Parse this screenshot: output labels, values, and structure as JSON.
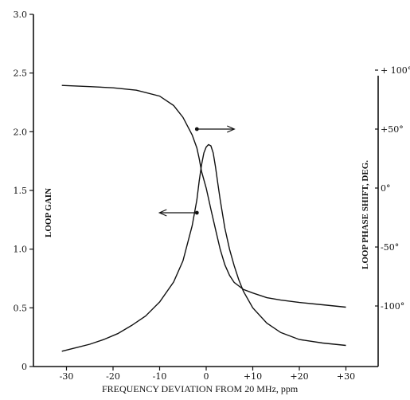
{
  "chart_data": {
    "type": "line",
    "title": "",
    "xlabel": "FREQUENCY DEVIATION FROM 20 MHz, ppm",
    "ylabel": "LOOP GAIN",
    "y2label": "LOOP PHASE SHIFT, DEG.",
    "xlim": [
      -32,
      33
    ],
    "ylim": [
      0,
      3.0
    ],
    "y2lim": [
      -150,
      150
    ],
    "grid": false,
    "x_ticks": [
      {
        "value": -30,
        "label": "-30"
      },
      {
        "value": -20,
        "label": "-20"
      },
      {
        "value": -10,
        "label": "-10"
      },
      {
        "value": 0,
        "label": "0"
      },
      {
        "value": 10,
        "label": "+10"
      },
      {
        "value": 20,
        "label": "+20"
      },
      {
        "value": 30,
        "label": "+30"
      }
    ],
    "y_ticks": [
      {
        "value": 0,
        "label": "0"
      },
      {
        "value": 0.5,
        "label": "0.5"
      },
      {
        "value": 1.0,
        "label": "1.0"
      },
      {
        "value": 1.5,
        "label": "1.5"
      },
      {
        "value": 2.0,
        "label": "2.0"
      },
      {
        "value": 2.5,
        "label": "2.5"
      },
      {
        "value": 3.0,
        "label": "3.0"
      }
    ],
    "y2_ticks": [
      {
        "value": 100,
        "label": "+ 100°"
      },
      {
        "value": 50,
        "label": "+50°"
      },
      {
        "value": 0,
        "label": "0°"
      },
      {
        "value": -50,
        "label": "-50°"
      },
      {
        "value": -100,
        "label": "-100°"
      }
    ],
    "series": [
      {
        "axis": "left",
        "x": [
          -31,
          -28,
          -25,
          -22,
          -19,
          -16,
          -13,
          -10,
          -7,
          -5,
          -3,
          -2,
          -1.5,
          -1,
          -0.5,
          0,
          0.5,
          1,
          1.5,
          2,
          2.5,
          3,
          4,
          5,
          6,
          7,
          8,
          10,
          13,
          16,
          20,
          25,
          30
        ],
        "values": [
          0.13,
          0.16,
          0.19,
          0.23,
          0.28,
          0.35,
          0.43,
          0.55,
          0.72,
          0.9,
          1.2,
          1.42,
          1.58,
          1.72,
          1.82,
          1.87,
          1.89,
          1.88,
          1.82,
          1.7,
          1.56,
          1.42,
          1.18,
          1.0,
          0.86,
          0.74,
          0.64,
          0.5,
          0.37,
          0.29,
          0.23,
          0.2,
          0.18
        ]
      },
      {
        "axis": "right",
        "x": [
          -31,
          -25,
          -20,
          -15,
          -10,
          -7,
          -5,
          -3,
          -2,
          -1.5,
          -1,
          0,
          1,
          2,
          3,
          4,
          5,
          6,
          8,
          10,
          13,
          16,
          20,
          25,
          30
        ],
        "values": [
          87,
          86,
          85,
          83,
          78,
          70,
          60,
          45,
          34,
          25,
          14,
          0,
          -18,
          -35,
          -52,
          -65,
          -74,
          -80,
          -86,
          -89,
          -93,
          -95,
          -97,
          -99,
          -101
        ]
      }
    ],
    "markers": [
      {
        "axis": "right",
        "x": -2,
        "y": 50,
        "arrow": "right"
      },
      {
        "axis": "left",
        "x": -2,
        "y": 1.31,
        "arrow": "left"
      }
    ]
  }
}
